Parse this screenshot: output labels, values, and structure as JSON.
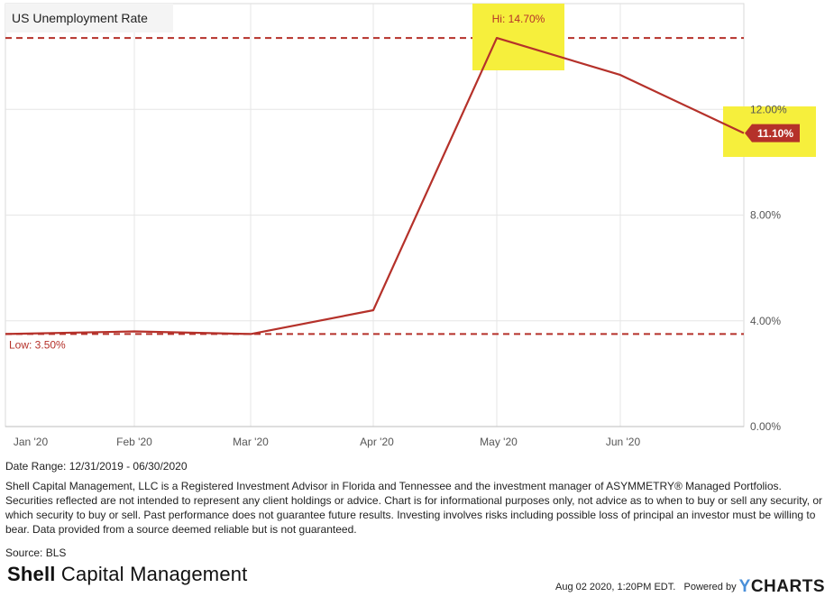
{
  "chart_data": {
    "type": "line",
    "title": "US Unemployment Rate",
    "x": [
      "Dec '19",
      "Jan '20",
      "Feb '20",
      "Mar '20",
      "Apr '20",
      "May '20",
      "Jun '20"
    ],
    "series": [
      {
        "values": [
          3.5,
          3.6,
          3.5,
          4.4,
          14.7,
          13.3,
          11.1
        ]
      }
    ],
    "x_tick_labels": [
      "Jan '20",
      "Feb '20",
      "Mar '20",
      "Apr '20",
      "May '20",
      "Jun '20"
    ],
    "y_tick_labels": [
      "0.00%",
      "4.00%",
      "8.00%",
      "12.00%"
    ],
    "y_ticks": [
      0,
      4,
      8,
      12
    ],
    "ylim": [
      0,
      16
    ],
    "grid": true,
    "hi_label": "Hi: 14.70%",
    "hi_value": 14.7,
    "low_label": "Low: 3.50%",
    "low_value": 3.5,
    "last_value_label": "11.10%",
    "line_color": "#b5312a",
    "highlight_color": "#f6ef3c"
  },
  "date_range": "Date Range: 12/31/2019 - 06/30/2020",
  "disclaimer": "Shell Capital Management, LLC is a Registered Investment Advisor in Florida and Tennessee and the investment manager of ASYMMETRY® Managed Portfolios. Securities reflected are not intended to represent any client holdings or advice. Chart is for informational purposes only, not advice as to when to buy or sell any security, or which security to buy or sell. Past performance does not guarantee future results. Investing involves risks including possible loss of principal an investor must be willing to bear. Data provided from a source deemed reliable but is not guaranteed.",
  "source": "Source: BLS",
  "logo": {
    "bold": "Shell",
    "rest": " Capital Management"
  },
  "footer": {
    "timestamp": "Aug 02 2020, 1:20PM EDT.",
    "powered_by": "Powered by",
    "brand_y": "Y",
    "brand_rest": "CHARTS"
  }
}
